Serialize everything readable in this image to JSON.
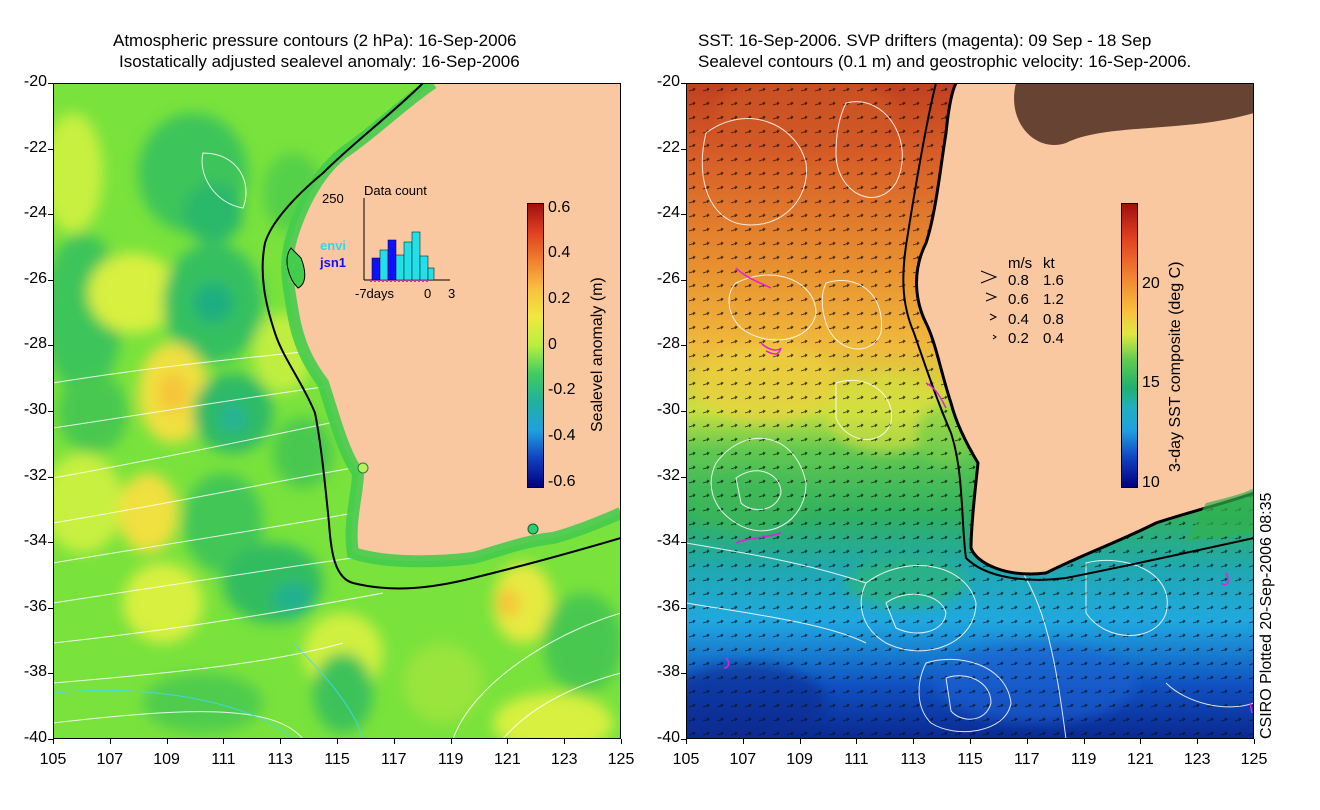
{
  "left": {
    "title_line1": "Atmospheric pressure contours (2 hPa): 16-Sep-2006",
    "title_line2": "Isostatically adjusted sealevel anomaly: 16-Sep-2006",
    "colorbar_label": "Sealevel anomaly (m)",
    "colorbar_ticks": [
      "0.6",
      "0.4",
      "0.2",
      "0",
      "-0.2",
      "-0.4",
      "-0.6"
    ],
    "inset": {
      "title": "Data count",
      "ymax_label": "250",
      "series1": "envi",
      "series2": "jsn1",
      "x_label_left": "-7days",
      "x_label_zero": "0",
      "x_label_right": "3",
      "series1_color": "#22e0e8",
      "series2_color": "#1010ff"
    }
  },
  "right": {
    "title_line1": "SST: 16-Sep-2006. SVP drifters (magenta): 09 Sep - 18 Sep",
    "title_line2": "Sealevel contours (0.1 m) and geostrophic velocity: 16-Sep-2006.",
    "colorbar_label": "3-day SST composite (deg C)",
    "colorbar_ticks": [
      "20",
      "15",
      "10"
    ],
    "velocity_key": {
      "header_ms": "m/s",
      "header_kt": "kt",
      "rows": [
        {
          "ms": "0.8",
          "kt": "1.6"
        },
        {
          "ms": "0.6",
          "kt": "1.2"
        },
        {
          "ms": "0.4",
          "kt": "0.8"
        },
        {
          "ms": "0.2",
          "kt": "0.4"
        }
      ]
    }
  },
  "axes": {
    "lat_ticks": [
      "-20",
      "-22",
      "-24",
      "-26",
      "-28",
      "-30",
      "-32",
      "-34",
      "-36",
      "-38",
      "-40"
    ],
    "lon_ticks": [
      "105",
      "107",
      "109",
      "111",
      "113",
      "115",
      "117",
      "119",
      "121",
      "123",
      "125"
    ]
  },
  "footer": "CSIRO Plotted 20-Sep-2006 08:35",
  "colors": {
    "land": "#f9c8a0",
    "sla_background": "#7fe83a",
    "drifter": "#e020e0"
  }
}
